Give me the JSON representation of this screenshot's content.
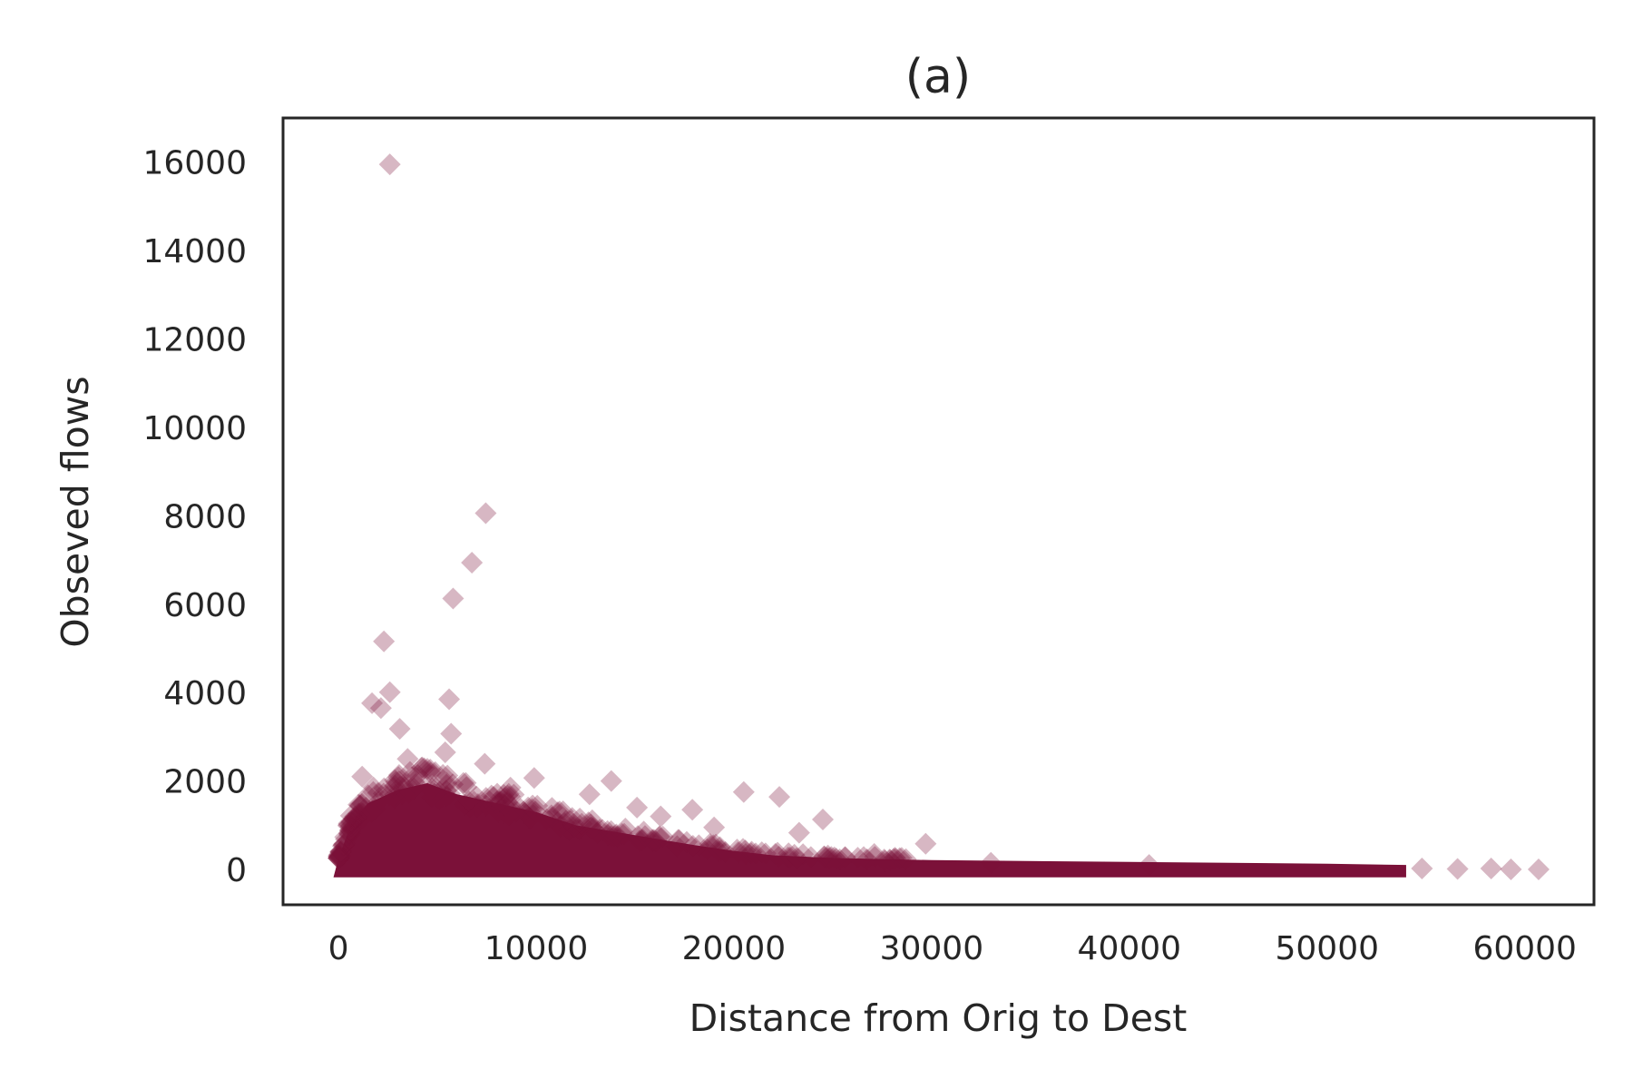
{
  "chart_data": {
    "type": "scatter",
    "title": "(a)",
    "xlabel": "Distance from Orig to Dest",
    "ylabel": "Obseved flows",
    "xlim": [
      -2800,
      63500
    ],
    "ylim": [
      -800,
      17000
    ],
    "xticks": [
      0,
      10000,
      20000,
      30000,
      40000,
      50000,
      60000
    ],
    "yticks": [
      0,
      2000,
      4000,
      6000,
      8000,
      10000,
      12000,
      14000,
      16000
    ],
    "xtick_labels": [
      "0",
      "10000",
      "20000",
      "30000",
      "40000",
      "50000",
      "60000"
    ],
    "ytick_labels": [
      "0",
      "2000",
      "4000",
      "6000",
      "8000",
      "10000",
      "12000",
      "14000",
      "16000"
    ],
    "grid": false,
    "marker": "diamond",
    "color": "#7b1139",
    "alpha": 0.3,
    "points": [
      {
        "x": 2600,
        "y": 15950
      },
      {
        "x": 7450,
        "y": 8060
      },
      {
        "x": 6750,
        "y": 6940
      },
      {
        "x": 5800,
        "y": 6130
      },
      {
        "x": 2300,
        "y": 5160
      },
      {
        "x": 2600,
        "y": 4010
      },
      {
        "x": 5600,
        "y": 3850
      },
      {
        "x": 1700,
        "y": 3760
      },
      {
        "x": 2150,
        "y": 3650
      },
      {
        "x": 3100,
        "y": 3180
      },
      {
        "x": 5700,
        "y": 3070
      },
      {
        "x": 5400,
        "y": 2650
      },
      {
        "x": 7400,
        "y": 2390
      },
      {
        "x": 3500,
        "y": 2500
      },
      {
        "x": 4200,
        "y": 2300
      },
      {
        "x": 4900,
        "y": 2200
      },
      {
        "x": 1200,
        "y": 2100
      },
      {
        "x": 9900,
        "y": 2070
      },
      {
        "x": 13800,
        "y": 2000
      },
      {
        "x": 8700,
        "y": 1850
      },
      {
        "x": 12700,
        "y": 1700
      },
      {
        "x": 20500,
        "y": 1750
      },
      {
        "x": 22300,
        "y": 1640
      },
      {
        "x": 15100,
        "y": 1400
      },
      {
        "x": 17900,
        "y": 1350
      },
      {
        "x": 16300,
        "y": 1200
      },
      {
        "x": 24500,
        "y": 1130
      },
      {
        "x": 11500,
        "y": 1100
      },
      {
        "x": 19000,
        "y": 950
      },
      {
        "x": 23300,
        "y": 830
      },
      {
        "x": 29700,
        "y": 580
      },
      {
        "x": 20900,
        "y": 400
      },
      {
        "x": 27100,
        "y": 350
      },
      {
        "x": 33000,
        "y": 150
      },
      {
        "x": 41000,
        "y": 100
      },
      {
        "x": 54800,
        "y": 20
      },
      {
        "x": 56600,
        "y": 10
      },
      {
        "x": 58300,
        "y": 20
      },
      {
        "x": 59300,
        "y": 0
      },
      {
        "x": 60700,
        "y": 0
      }
    ]
  }
}
